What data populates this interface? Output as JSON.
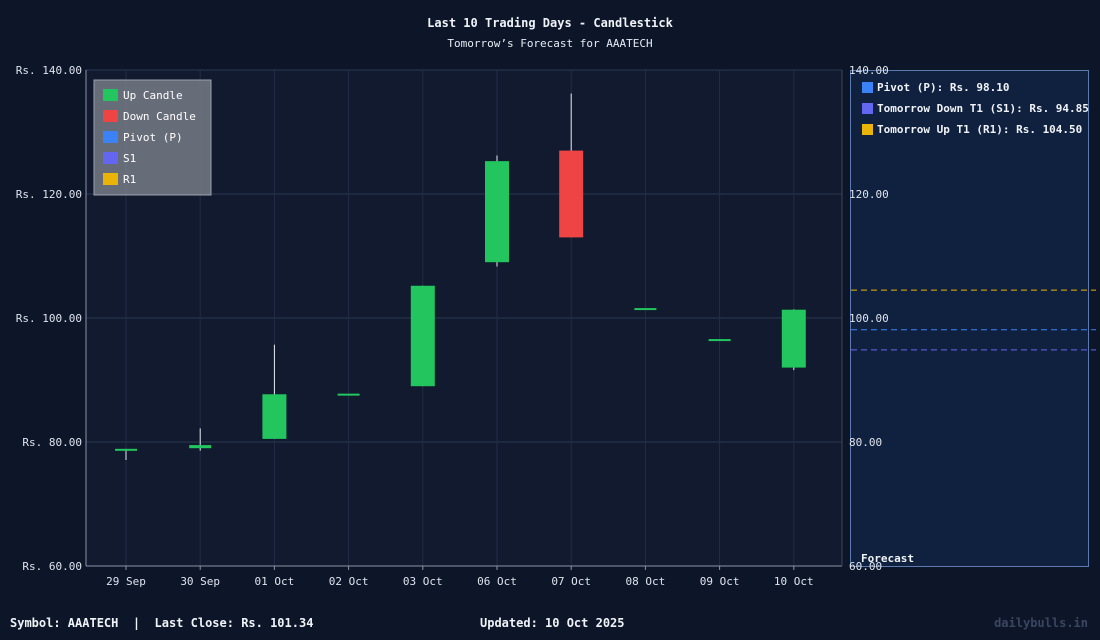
{
  "chart_data": {
    "type": "candlestick",
    "title": "Last 10 Trading Days - Candlestick",
    "subtitle": "Tomorrow’s Forecast for AAATECH",
    "categories": [
      "29 Sep",
      "30 Sep",
      "01 Oct",
      "02 Oct",
      "03 Oct",
      "06 Oct",
      "07 Oct",
      "08 Oct",
      "09 Oct",
      "10 Oct"
    ],
    "series": [
      {
        "open": [
          78.9,
          79.0,
          80.5,
          87.8,
          89.0,
          109.0,
          127.0,
          101.6,
          96.6,
          92.0
        ],
        "high": [
          78.9,
          82.2,
          95.7,
          87.8,
          105.2,
          126.2,
          136.2,
          101.6,
          96.6,
          101.4
        ],
        "low": [
          77.1,
          78.6,
          80.5,
          87.8,
          89.0,
          108.3,
          113.0,
          101.6,
          96.6,
          91.6
        ],
        "close": [
          78.9,
          79.5,
          87.7,
          87.8,
          105.2,
          125.3,
          113.0,
          101.6,
          96.6,
          101.34
        ]
      }
    ],
    "ylim": [
      60,
      140
    ],
    "yticks": [
      "Rs. 60.00",
      "Rs. 80.00",
      "Rs. 100.00",
      "Rs. 120.00",
      "Rs. 140.00"
    ],
    "yticks_right": [
      "60.00",
      "80.00",
      "100.00",
      "120.00",
      "140.00"
    ],
    "ytick_values": [
      60,
      80,
      100,
      120,
      140
    ],
    "grid": true,
    "legend_position": "top-left",
    "legend": [
      {
        "label": "Up Candle",
        "color": "#22c55e"
      },
      {
        "label": "Down Candle",
        "color": "#ef4444"
      },
      {
        "label": "Pivot (P)",
        "color": "#3b82f6"
      },
      {
        "label": "S1",
        "color": "#6366f1"
      },
      {
        "label": "R1",
        "color": "#eab308"
      }
    ],
    "up_color": "#22c55e",
    "down_color": "#ef4444",
    "forecast": {
      "label": "Forecast",
      "levels": [
        {
          "label": "Pivot (P): Rs. 98.10",
          "value": 98.1,
          "color": "#3b82f6"
        },
        {
          "label": "Tomorrow Down T1 (S1): Rs. 94.85",
          "value": 94.85,
          "color": "#6366f1"
        },
        {
          "label": "Tomorrow Up T1 (R1): Rs. 104.50",
          "value": 104.5,
          "color": "#eab308"
        }
      ]
    }
  },
  "footer": {
    "left": "Symbol: AAATECH  |  Last Close: Rs. 101.34",
    "center": "Updated: 10 Oct 2025",
    "right": "dailybulls.in"
  }
}
